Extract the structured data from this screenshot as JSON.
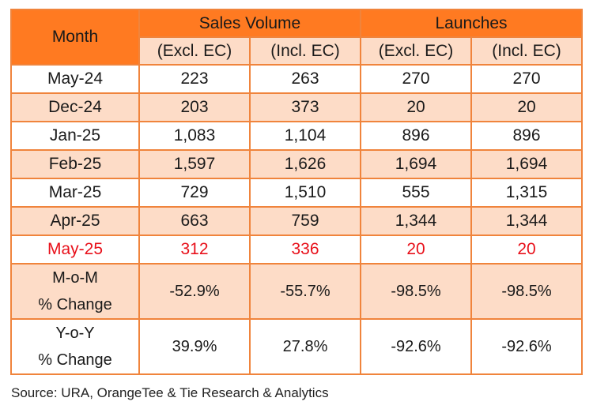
{
  "chart_data": {
    "type": "table",
    "header": {
      "month_label": "Month",
      "groups": [
        "Sales Volume",
        "Launches"
      ],
      "subheaders": [
        "(Excl. EC)",
        "(Incl. EC)",
        "(Excl. EC)",
        "(Incl. EC)"
      ]
    },
    "rows": [
      {
        "label": "May-24",
        "values": [
          "223",
          "263",
          "270",
          "270"
        ]
      },
      {
        "label": "Dec-24",
        "values": [
          "203",
          "373",
          "20",
          "20"
        ]
      },
      {
        "label": "Jan-25",
        "values": [
          "1,083",
          "1,104",
          "896",
          "896"
        ]
      },
      {
        "label": "Feb-25",
        "values": [
          "1,597",
          "1,626",
          "1,694",
          "1,694"
        ]
      },
      {
        "label": "Mar-25",
        "values": [
          "729",
          "1,510",
          "555",
          "1,315"
        ]
      },
      {
        "label": "Apr-25",
        "values": [
          "663",
          "759",
          "1,344",
          "1,344"
        ]
      },
      {
        "label": "May-25",
        "values": [
          "312",
          "336",
          "20",
          "20"
        ]
      }
    ],
    "change_rows": [
      {
        "label_line1": "M-o-M",
        "label_line2": "% Change",
        "values": [
          "-52.9%",
          "-55.7%",
          "-98.5%",
          "-98.5%"
        ]
      },
      {
        "label_line1": "Y-o-Y",
        "label_line2": "% Change",
        "values": [
          "39.9%",
          "27.8%",
          "-92.6%",
          "-92.6%"
        ]
      }
    ],
    "highlight_row": "May-25"
  },
  "source": "Source: URA, OrangeTee & Tie Research & Analytics",
  "colors": {
    "header_orange": "#ff7a21",
    "band_peach": "#fddcc7",
    "border": "#f0843c",
    "highlight_red": "#e8101a"
  }
}
